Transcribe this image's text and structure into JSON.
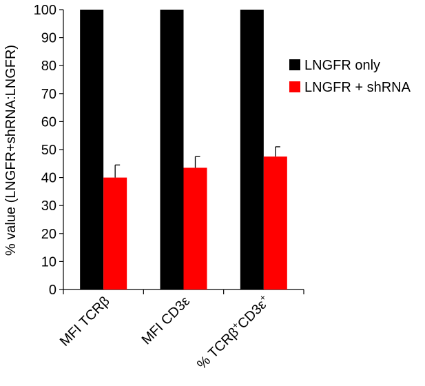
{
  "chart_data": {
    "type": "bar",
    "title": "",
    "xlabel": "",
    "ylabel": "% value (LNGFR+shRNA:LNGFR)",
    "ylim": [
      0,
      100
    ],
    "y_ticks": [
      0,
      10,
      20,
      30,
      40,
      50,
      60,
      70,
      80,
      90,
      100
    ],
    "grid": false,
    "legend_position": "right",
    "categories": [
      {
        "label": "MFI TCRβ",
        "base": "MFI TCRβ",
        "sup1": "",
        "mid": "",
        "sup2": ""
      },
      {
        "label": "MFI CD3ε",
        "base": "MFI CD3ε",
        "sup1": "",
        "mid": "",
        "sup2": ""
      },
      {
        "label": "% TCRβ+CD3ε+",
        "base": "% TCRβ",
        "sup1": "+",
        "mid": "CD3ε",
        "sup2": "+"
      }
    ],
    "series": [
      {
        "name": "LNGFR only",
        "color": "#000000",
        "values": [
          100,
          100,
          100
        ],
        "errors": [
          0,
          0,
          0
        ]
      },
      {
        "name": "LNGFR + shRNA",
        "color": "#ff0000",
        "values": [
          40,
          43.5,
          47.5
        ],
        "errors": [
          4.5,
          4,
          3.5
        ]
      }
    ]
  }
}
